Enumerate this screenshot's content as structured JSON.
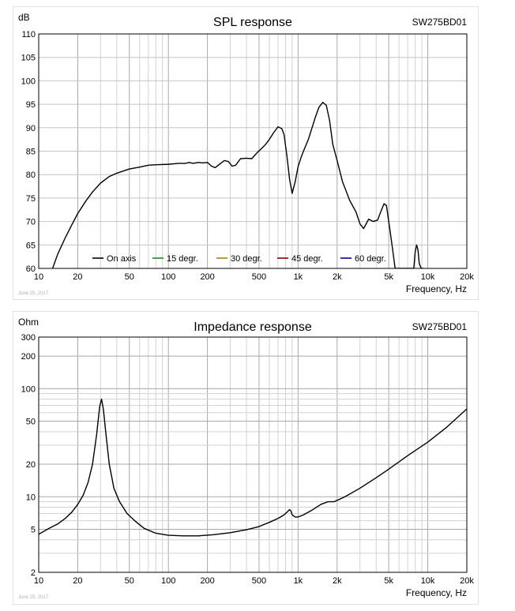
{
  "chart_data": [
    {
      "type": "line",
      "title": "SPL response",
      "model": "SW275BD01",
      "ylabel": "dB",
      "xlabel": "Frequency, Hz",
      "x_scale": "log",
      "xlim": [
        10,
        20000
      ],
      "ylim": [
        60,
        110
      ],
      "x_tick_labels": [
        {
          "value": 10,
          "label": "10"
        },
        {
          "value": 20,
          "label": "20"
        },
        {
          "value": 50,
          "label": "50"
        },
        {
          "value": 100,
          "label": "100"
        },
        {
          "value": 200,
          "label": "200"
        },
        {
          "value": 500,
          "label": "500"
        },
        {
          "value": 1000,
          "label": "1k"
        },
        {
          "value": 2000,
          "label": "2k"
        },
        {
          "value": 5000,
          "label": "5k"
        },
        {
          "value": 10000,
          "label": "10k"
        },
        {
          "value": 20000,
          "label": "20k"
        }
      ],
      "y_tick_labels": [
        {
          "value": 60,
          "label": "60"
        },
        {
          "value": 65,
          "label": "65"
        },
        {
          "value": 70,
          "label": "70"
        },
        {
          "value": 75,
          "label": "75"
        },
        {
          "value": 80,
          "label": "80"
        },
        {
          "value": 85,
          "label": "85"
        },
        {
          "value": 90,
          "label": "90"
        },
        {
          "value": 95,
          "label": "95"
        },
        {
          "value": 100,
          "label": "100"
        },
        {
          "value": 105,
          "label": "105"
        },
        {
          "value": 110,
          "label": "110"
        }
      ],
      "grid": true,
      "legend_position": "bottom",
      "date_note": "June 25, 2017",
      "series": [
        {
          "name": "On axis",
          "color": "#000000",
          "x": [
            12.8,
            14,
            16,
            18,
            20,
            23,
            26,
            30,
            35,
            40,
            50,
            60,
            70,
            80,
            100,
            120,
            135,
            145,
            155,
            170,
            185,
            200,
            215,
            230,
            250,
            270,
            290,
            310,
            330,
            360,
            400,
            440,
            480,
            520,
            560,
            600,
            650,
            700,
            750,
            780,
            820,
            860,
            900,
            950,
            1000,
            1050,
            1100,
            1200,
            1350,
            1450,
            1550,
            1650,
            1750,
            1850,
            2000,
            2200,
            2500,
            2800,
            3000,
            3200,
            3500,
            3800,
            4100,
            4400,
            4600,
            4800,
            5000,
            5300,
            5600,
            6000,
            6400,
            6700,
            7000,
            7600,
            7800,
            8000,
            8200,
            8400,
            8600,
            8900,
            9300
          ],
          "y": [
            60,
            63,
            66.5,
            69.3,
            71.7,
            74.3,
            76.3,
            78.2,
            79.6,
            80.3,
            81.2,
            81.6,
            82,
            82.1,
            82.2,
            82.4,
            82.4,
            82.6,
            82.4,
            82.6,
            82.5,
            82.6,
            81.8,
            81.5,
            82.3,
            83,
            82.8,
            81.8,
            82,
            83.4,
            83.5,
            83.4,
            84.6,
            85.5,
            86.4,
            87.5,
            89,
            90.2,
            89.8,
            88.5,
            84,
            79,
            76,
            78.5,
            81.7,
            83.5,
            85,
            87.5,
            92,
            94.4,
            95.4,
            94.8,
            91.5,
            86.5,
            83,
            78.5,
            74.5,
            72,
            69.5,
            68.5,
            70.5,
            70,
            70.3,
            72.5,
            73.8,
            73.4,
            70,
            65,
            60,
            60,
            60,
            60,
            60,
            60,
            60,
            63.5,
            65,
            64,
            61,
            60,
            60
          ]
        },
        {
          "name": "15 degr.",
          "color": "#1e8c1e",
          "x": [],
          "y": []
        },
        {
          "name": "30 degr.",
          "color": "#9a8a10",
          "x": [],
          "y": []
        },
        {
          "name": "45 degr.",
          "color": "#8b0000",
          "x": [],
          "y": []
        },
        {
          "name": "60 degr.",
          "color": "#00008b",
          "x": [],
          "y": []
        }
      ]
    },
    {
      "type": "line",
      "title": "Impedance response",
      "model": "SW275BD01",
      "ylabel": "Ohm",
      "xlabel": "Frequency, Hz",
      "x_scale": "log",
      "y_scale": "log",
      "xlim": [
        10,
        20000
      ],
      "ylim": [
        2,
        300
      ],
      "x_tick_labels": [
        {
          "value": 10,
          "label": "10"
        },
        {
          "value": 20,
          "label": "20"
        },
        {
          "value": 50,
          "label": "50"
        },
        {
          "value": 100,
          "label": "100"
        },
        {
          "value": 200,
          "label": "200"
        },
        {
          "value": 500,
          "label": "500"
        },
        {
          "value": 1000,
          "label": "1k"
        },
        {
          "value": 2000,
          "label": "2k"
        },
        {
          "value": 5000,
          "label": "5k"
        },
        {
          "value": 10000,
          "label": "10k"
        },
        {
          "value": 20000,
          "label": "20k"
        }
      ],
      "y_tick_labels": [
        {
          "value": 2,
          "label": "2"
        },
        {
          "value": 5,
          "label": "5"
        },
        {
          "value": 10,
          "label": "10"
        },
        {
          "value": 20,
          "label": "20"
        },
        {
          "value": 50,
          "label": "50"
        },
        {
          "value": 100,
          "label": "100"
        },
        {
          "value": 200,
          "label": "200"
        },
        {
          "value": 300,
          "label": "300"
        }
      ],
      "grid": true,
      "date_note": "June 25, 2017",
      "series": [
        {
          "color": "#000000",
          "x": [
            10,
            12,
            14,
            16,
            18,
            20,
            22,
            24,
            26,
            28,
            29.5,
            30.5,
            31.5,
            33,
            35,
            38,
            42,
            48,
            55,
            65,
            80,
            100,
            130,
            170,
            220,
            300,
            400,
            500,
            600,
            700,
            780,
            820,
            860,
            880,
            900,
            950,
            1000,
            1100,
            1300,
            1500,
            1700,
            1900,
            2300,
            3000,
            4000,
            5000,
            7000,
            10000,
            14000,
            20000
          ],
          "y": [
            4.5,
            5.1,
            5.6,
            6.3,
            7.2,
            8.5,
            10.3,
            13.5,
            20,
            38,
            68,
            80,
            65,
            38,
            20,
            12,
            9,
            7,
            6,
            5.1,
            4.6,
            4.4,
            4.35,
            4.35,
            4.45,
            4.65,
            4.95,
            5.3,
            5.8,
            6.3,
            6.8,
            7.2,
            7.6,
            7.4,
            6.8,
            6.5,
            6.5,
            6.8,
            7.6,
            8.5,
            9.0,
            9.0,
            10.0,
            12.0,
            15.0,
            18.0,
            24.0,
            32.0,
            44.0,
            65.0
          ]
        }
      ]
    }
  ]
}
